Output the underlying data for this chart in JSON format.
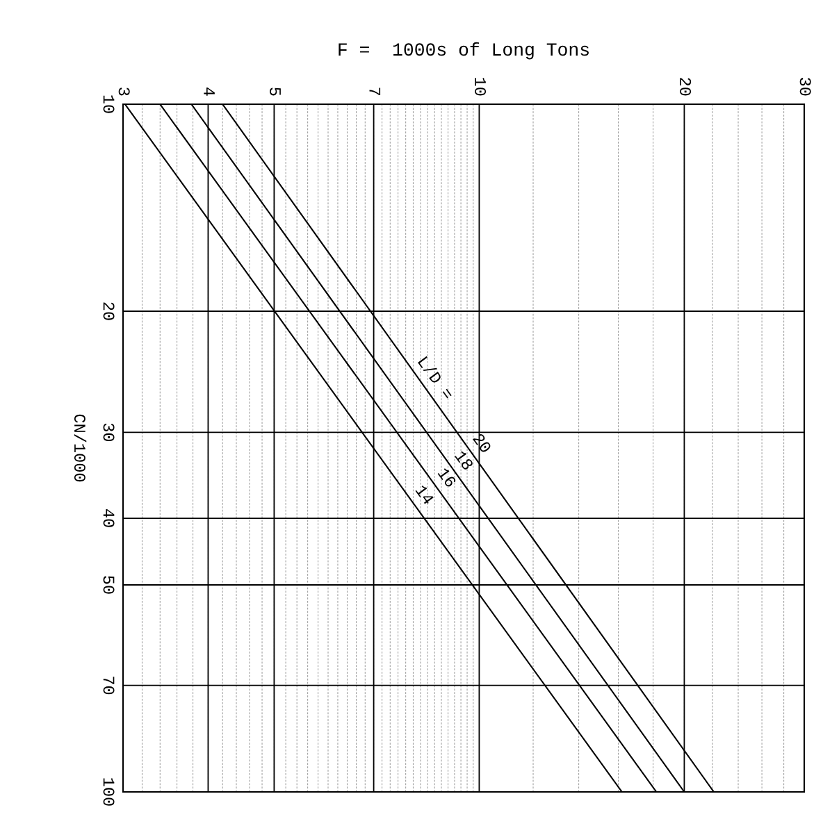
{
  "chart_data": {
    "type": "line",
    "xlabel": "F =  1000s of Long Tons",
    "ylabel": "CN/1000",
    "log": "xy",
    "grid": true,
    "legend": false,
    "marker": "none",
    "line_style": "solid",
    "xlim": [
      3,
      30
    ],
    "ylim": [
      100,
      10
    ],
    "xticks": [
      3,
      4,
      5,
      7,
      10,
      20,
      30
    ],
    "yticks": [
      10,
      20,
      30,
      40,
      50,
      70,
      100
    ],
    "series": [
      {
        "name": "20",
        "color": "#000000",
        "x": [
          4.2,
          22.1
        ],
        "values": [
          10,
          100
        ]
      },
      {
        "name": "18",
        "color": "#000000",
        "x": [
          3.78,
          20.0
        ],
        "values": [
          10,
          100
        ]
      },
      {
        "name": "16",
        "color": "#000000",
        "x": [
          3.4,
          18.2
        ],
        "values": [
          10,
          100
        ]
      },
      {
        "name": "14",
        "color": "#000000",
        "x": [
          3.02,
          16.2
        ],
        "values": [
          10,
          100
        ]
      }
    ],
    "annotations": [
      "L/D ="
    ]
  }
}
